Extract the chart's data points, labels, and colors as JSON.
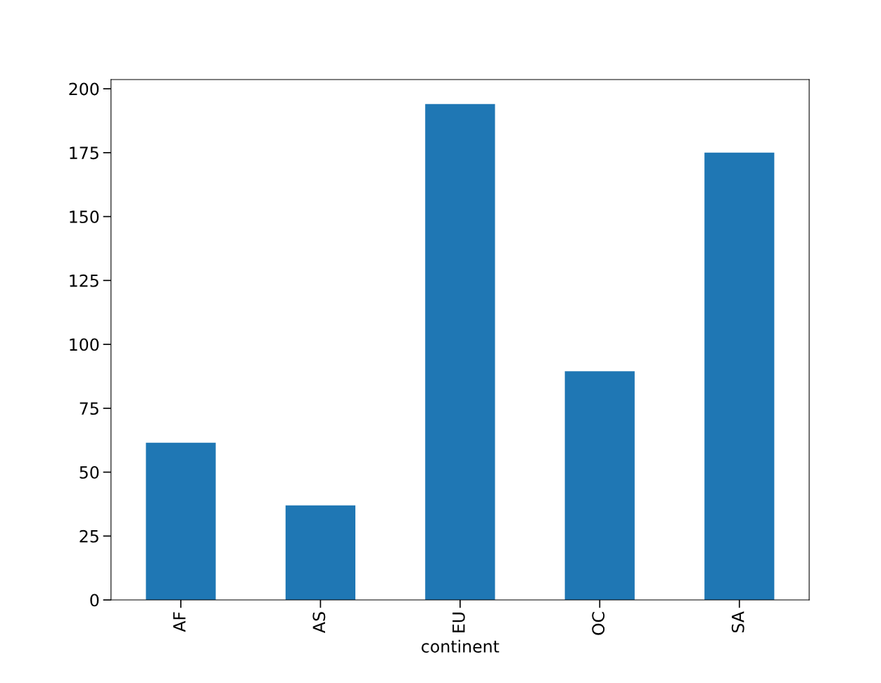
{
  "chart_data": {
    "type": "bar",
    "xlabel": "continent",
    "categories": [
      "AF",
      "AS",
      "EU",
      "OC",
      "SA"
    ],
    "values": [
      61.5,
      37,
      194,
      89.5,
      175
    ],
    "color": "#1f77b4",
    "ylim": [
      0,
      203.6
    ],
    "yticks": [
      0,
      25,
      50,
      75,
      100,
      125,
      150,
      175,
      200
    ],
    "grid": false,
    "legend": false
  }
}
